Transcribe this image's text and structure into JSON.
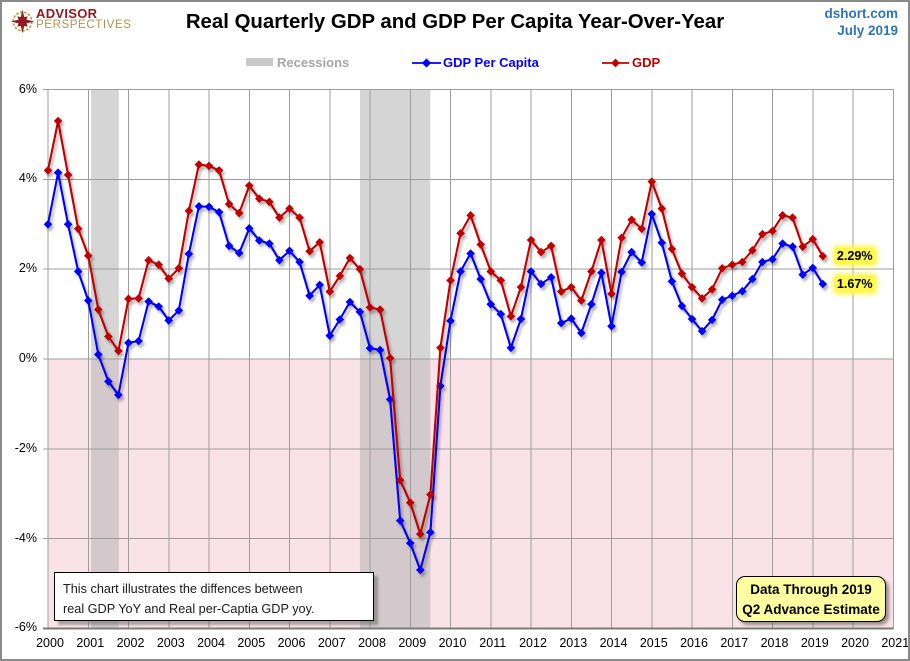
{
  "header": {
    "logo_line1": "ADVISOR",
    "logo_line2": "PERSPECTIVES",
    "title": "Real Quarterly GDP and GDP Per Capita Year-Over-Year",
    "source_line1": "dshort.com",
    "source_line2": "July 2019"
  },
  "legend": {
    "recessions_label": "Recessions",
    "per_capita_label": "GDP Per Capita",
    "gdp_label": "GDP"
  },
  "annotations": {
    "note_line1": "This chart illustrates the diffences between",
    "note_line2": "real GDP YoY and Real per-Captia GDP yoy.",
    "callout_line1": "Data Through 2019",
    "callout_line2": "Q2 Advance Estimate",
    "gdp_end_label": "2.29%",
    "per_capita_end_label": "1.67%"
  },
  "colors": {
    "gdp": "#c00000",
    "per_capita": "#0000fe",
    "recession_band": "#b2b2b2",
    "negative_region": "#fae3e8",
    "gridline": "#9d9d9d",
    "axis": "#7a7a7a",
    "source_text": "#2e74b5",
    "recessions_legend_text": "#a6a6a6",
    "end_label_bg": "#fdf84a"
  },
  "chart_data": {
    "type": "line",
    "title": "Real Quarterly GDP and GDP Per Capita Year-Over-Year",
    "xlabel": "",
    "ylabel": "",
    "xlim": [
      2000,
      2021
    ],
    "ylim": [
      -6,
      6
    ],
    "grid": true,
    "legend_position": "top",
    "x_unit": "quarterly, first point 2000 Q1, last point 2019 Q2",
    "x_ticks": [
      "2000",
      "2001",
      "2002",
      "2003",
      "2004",
      "2005",
      "2006",
      "2007",
      "2008",
      "2009",
      "2010",
      "2011",
      "2012",
      "2013",
      "2014",
      "2015",
      "2016",
      "2017",
      "2018",
      "2019",
      "2020",
      "2021"
    ],
    "y_ticks": [
      "6%",
      "4%",
      "2%",
      "0%",
      "-2%",
      "-4%",
      "-6%"
    ],
    "y_tick_values": [
      6,
      4,
      2,
      0,
      -2,
      -4,
      -6
    ],
    "recession_bands_years": [
      [
        2001.07,
        2001.76
      ],
      [
        2007.75,
        2009.5
      ]
    ],
    "series": [
      {
        "name": "GDP Per Capita",
        "color": "#0000fe",
        "values": [
          3.0,
          4.15,
          3.0,
          1.95,
          1.3,
          0.1,
          -0.5,
          -0.8,
          0.36,
          0.4,
          1.28,
          1.17,
          0.86,
          1.08,
          2.34,
          3.4,
          3.39,
          3.27,
          2.52,
          2.36,
          2.91,
          2.64,
          2.57,
          2.2,
          2.41,
          2.16,
          1.41,
          1.65,
          0.52,
          0.88,
          1.27,
          1.05,
          0.24,
          0.2,
          -0.9,
          -3.6,
          -4.1,
          -4.7,
          -3.86,
          -0.6,
          0.85,
          1.95,
          2.35,
          1.78,
          1.22,
          1.0,
          0.25,
          0.89,
          1.95,
          1.67,
          1.82,
          0.8,
          0.9,
          0.58,
          1.22,
          1.92,
          0.73,
          1.94,
          2.38,
          2.15,
          3.23,
          2.59,
          1.73,
          1.18,
          0.89,
          0.62,
          0.87,
          1.32,
          1.41,
          1.51,
          1.78,
          2.16,
          2.22,
          2.57,
          2.5,
          1.88,
          2.03,
          1.67
        ]
      },
      {
        "name": "GDP",
        "color": "#c00000",
        "values": [
          4.2,
          5.3,
          4.1,
          2.9,
          2.3,
          1.1,
          0.5,
          0.18,
          1.34,
          1.35,
          2.2,
          2.1,
          1.79,
          2.02,
          3.3,
          4.33,
          4.3,
          4.2,
          3.45,
          3.25,
          3.86,
          3.57,
          3.5,
          3.15,
          3.35,
          3.15,
          2.4,
          2.6,
          1.5,
          1.85,
          2.25,
          2.0,
          1.15,
          1.1,
          0.02,
          -2.7,
          -3.2,
          -3.9,
          -3.02,
          0.25,
          1.75,
          2.8,
          3.2,
          2.55,
          1.95,
          1.75,
          0.95,
          1.6,
          2.65,
          2.38,
          2.52,
          1.5,
          1.6,
          1.3,
          1.95,
          2.65,
          1.45,
          2.7,
          3.1,
          2.9,
          3.95,
          3.35,
          2.45,
          1.9,
          1.6,
          1.35,
          1.55,
          2.02,
          2.1,
          2.16,
          2.42,
          2.78,
          2.85,
          3.2,
          3.15,
          2.5,
          2.67,
          2.29
        ]
      }
    ],
    "end_labels": [
      {
        "series": "GDP",
        "text": "2.29%"
      },
      {
        "series": "GDP Per Capita",
        "text": "1.67%"
      }
    ]
  }
}
